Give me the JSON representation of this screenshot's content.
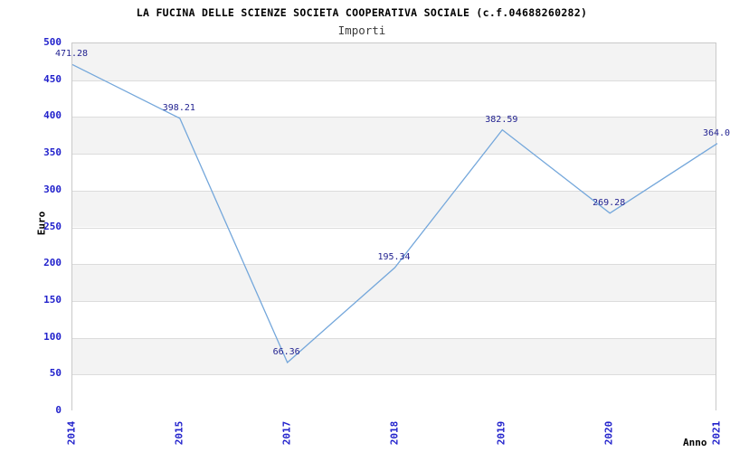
{
  "header": {
    "title": "LA FUCINA DELLE SCIENZE SOCIETA COOPERATIVA SOCIALE (c.f.04688260282)",
    "subtitle": "Importi"
  },
  "chart_data": {
    "type": "line",
    "title": "LA FUCINA DELLE SCIENZE SOCIETA COOPERATIVA SOCIALE (c.f.04688260282)",
    "subtitle": "Importi",
    "xlabel": "Anno",
    "ylabel": "Euro",
    "categories": [
      "2014",
      "2015",
      "2017",
      "2018",
      "2019",
      "2020",
      "2021"
    ],
    "values": [
      471.28,
      398.21,
      66.36,
      195.34,
      382.59,
      269.28,
      364.0
    ],
    "point_labels": [
      "471.28",
      "398.21",
      "66.36",
      "195.34",
      "382.59",
      "269.28",
      "364.0"
    ],
    "ylim": [
      0,
      500
    ],
    "y_ticks": [
      0,
      50,
      100,
      150,
      200,
      250,
      300,
      350,
      400,
      450,
      500
    ],
    "x_tick_rotation_deg": 90,
    "grid": "horizontal gridlines with alternating gray/white bands",
    "legend": "none"
  },
  "colors": {
    "line": "#74a7db",
    "tick_label": "#2222cc",
    "data_label": "#1f1f8f",
    "band_gray": "#f3f3f3",
    "band_white": "#ffffff",
    "grid_line": "#dcdcdc",
    "plot_border": "#c9c9c9",
    "title_text": "#000000",
    "subtitle_text": "#3c3c3c"
  }
}
